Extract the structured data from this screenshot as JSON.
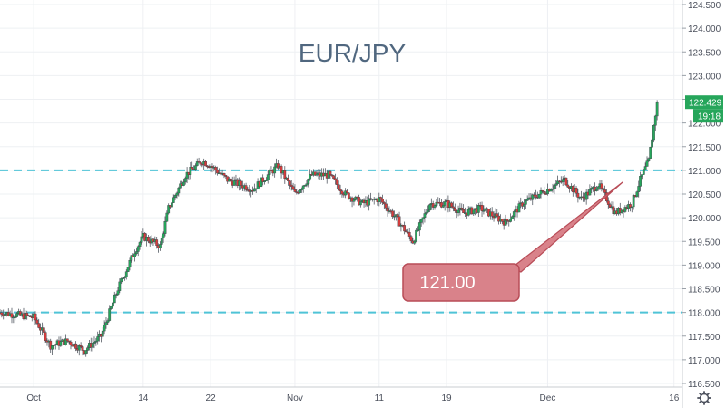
{
  "chart_data": {
    "type": "candlestick",
    "title": "EUR/JPY",
    "subtitle": "",
    "xlabel": "",
    "ylabel": "",
    "x_range": [
      "2019-09-27",
      "2019-12-17"
    ],
    "ylim": [
      116.5,
      124.5
    ],
    "y_ticks": [
      "124.500",
      "124.000",
      "123.500",
      "123.000",
      "122.500",
      "122.000",
      "121.500",
      "121.000",
      "120.500",
      "120.000",
      "119.500",
      "119.000",
      "118.500",
      "118.000",
      "117.500",
      "117.000",
      "116.500"
    ],
    "x_ticks": [
      {
        "date": "2019-10-01",
        "label": "Oct"
      },
      {
        "date": "2019-10-14",
        "label": "14"
      },
      {
        "date": "2019-10-22",
        "label": "22"
      },
      {
        "date": "2019-11-01",
        "label": "Nov"
      },
      {
        "date": "2019-11-11",
        "label": "11"
      },
      {
        "date": "2019-11-19",
        "label": "19"
      },
      {
        "date": "2019-12-01",
        "label": "Dec"
      },
      {
        "date": "2019-12-16",
        "label": "16"
      }
    ],
    "grid": true,
    "legend": "none",
    "levels": [
      {
        "value": 121.0,
        "style": "dashed",
        "color": "#4fc3d6"
      },
      {
        "value": 118.0,
        "style": "dashed",
        "color": "#4fc3d6"
      }
    ],
    "annotation": {
      "text": "121.00",
      "color": "#d9828a"
    },
    "last_price": {
      "value": 122.429,
      "label": "122.429",
      "countdown": "19:18",
      "color": "#26a65b"
    },
    "close_path": [
      [
        "2019-09-27",
        118.0
      ],
      [
        "2019-10-01",
        117.9
      ],
      [
        "2019-10-03",
        117.3
      ],
      [
        "2019-10-05",
        117.4
      ],
      [
        "2019-10-07",
        117.2
      ],
      [
        "2019-10-09",
        117.5
      ],
      [
        "2019-10-11",
        118.5
      ],
      [
        "2019-10-13",
        119.3
      ],
      [
        "2019-10-14",
        119.6
      ],
      [
        "2019-10-16",
        119.4
      ],
      [
        "2019-10-17",
        120.2
      ],
      [
        "2019-10-19",
        120.9
      ],
      [
        "2019-10-21",
        121.2
      ],
      [
        "2019-10-22",
        121.1
      ],
      [
        "2019-10-24",
        120.8
      ],
      [
        "2019-10-27",
        120.6
      ],
      [
        "2019-10-30",
        121.1
      ],
      [
        "2019-11-01",
        120.5
      ],
      [
        "2019-11-03",
        120.9
      ],
      [
        "2019-11-05",
        120.9
      ],
      [
        "2019-11-07",
        120.5
      ],
      [
        "2019-11-09",
        120.3
      ],
      [
        "2019-11-11",
        120.4
      ],
      [
        "2019-11-13",
        120.0
      ],
      [
        "2019-11-15",
        119.5
      ],
      [
        "2019-11-17",
        120.3
      ],
      [
        "2019-11-19",
        120.3
      ],
      [
        "2019-11-21",
        120.1
      ],
      [
        "2019-11-23",
        120.2
      ],
      [
        "2019-11-26",
        119.9
      ],
      [
        "2019-11-28",
        120.3
      ],
      [
        "2019-12-01",
        120.6
      ],
      [
        "2019-12-03",
        120.8
      ],
      [
        "2019-12-05",
        120.4
      ],
      [
        "2019-12-07",
        120.7
      ],
      [
        "2019-12-09",
        120.1
      ],
      [
        "2019-12-11",
        120.3
      ],
      [
        "2019-12-12",
        120.8
      ],
      [
        "2019-12-13",
        121.2
      ],
      [
        "2019-12-14",
        122.43
      ]
    ]
  }
}
